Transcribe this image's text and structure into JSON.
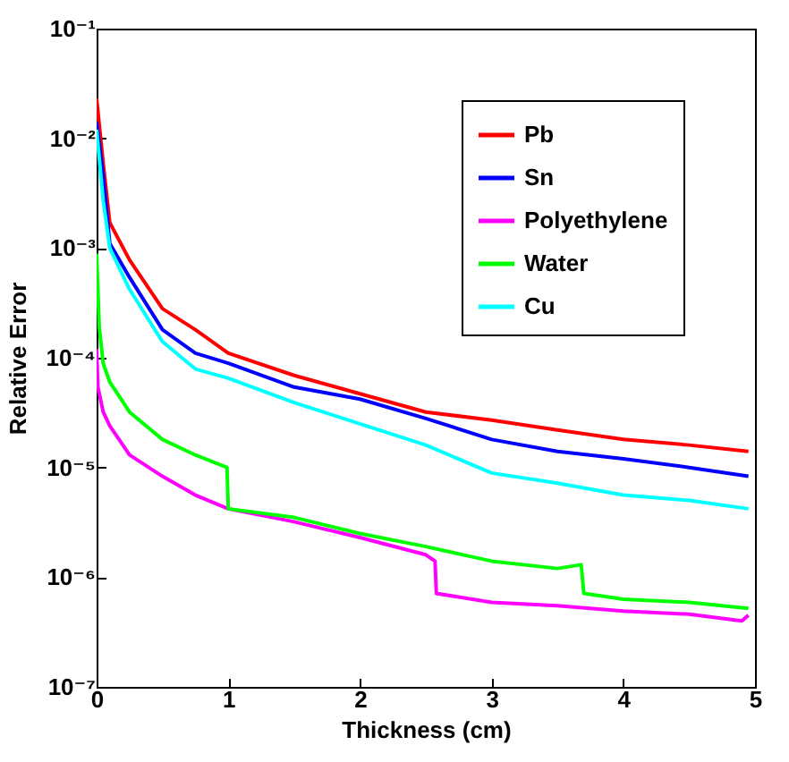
{
  "chart_data": {
    "type": "line",
    "xlabel": "Thickness (cm)",
    "ylabel": "Relative Error",
    "x": [
      0,
      0.05,
      0.1,
      0.25,
      0.5,
      0.75,
      1,
      1.5,
      2,
      2.5,
      3,
      3.5,
      4,
      4.5,
      4.95
    ],
    "series": [
      {
        "name": "Pb",
        "color": "#ff0000",
        "values": [
          0.023,
          0.0059,
          0.0017,
          0.00078,
          0.00028,
          0.00018,
          0.00011,
          6.9e-05,
          4.7e-05,
          3.2e-05,
          2.7e-05,
          2.2e-05,
          1.8e-05,
          1.6e-05,
          1.4e-05
        ]
      },
      {
        "name": "Sn",
        "color": "#0000ff",
        "values": [
          0.014,
          0.0045,
          0.0011,
          0.00054,
          0.00018,
          0.00011,
          8.9e-05,
          5.4e-05,
          4.2e-05,
          2.8e-05,
          1.8e-05,
          1.4e-05,
          1.2e-05,
          1e-05,
          8.3e-06
        ]
      },
      {
        "name": "Polyethylene",
        "color": "#ff00ff",
        "x": [
          0,
          0.01,
          0.05,
          0.1,
          0.25,
          0.5,
          0.75,
          1,
          1.5,
          2,
          2.5,
          2.57,
          2.58,
          3,
          3.5,
          4,
          4.5,
          4.9,
          4.95
        ],
        "values": [
          0.00012,
          5.4e-05,
          3.2e-05,
          2.4e-05,
          1.3e-05,
          8.3e-06,
          5.6e-06,
          4.2e-06,
          3.2e-06,
          2.3e-06,
          1.6e-06,
          1.4e-06,
          7.1e-07,
          5.9e-07,
          5.5e-07,
          4.9e-07,
          4.6e-07,
          4e-07,
          4.5e-07
        ]
      },
      {
        "name": "Water",
        "color": "#00ff00",
        "x": [
          0,
          0.02,
          0.05,
          0.1,
          0.25,
          0.5,
          0.75,
          0.99,
          1.0,
          1.5,
          2,
          2.5,
          3,
          3.5,
          3.68,
          3.7,
          4,
          4.5,
          4.95
        ],
        "values": [
          0.00089,
          0.00019,
          8.9e-05,
          6e-05,
          3.2e-05,
          1.8e-05,
          1.3e-05,
          1e-05,
          4.2e-06,
          3.5e-06,
          2.5e-06,
          1.9e-06,
          1.4e-06,
          1.2e-06,
          1.3e-06,
          7.1e-07,
          6.3e-07,
          5.9e-07,
          5.2e-07
        ]
      },
      {
        "name": "Cu",
        "color": "#00ffff",
        "values": [
          0.012,
          0.0027,
          0.001,
          0.00042,
          0.00014,
          7.9e-05,
          6.5e-05,
          3.9e-05,
          2.5e-05,
          1.6e-05,
          8.9e-06,
          7.2e-06,
          5.6e-06,
          5e-06,
          4.2e-06
        ]
      }
    ],
    "xlim": [
      0,
      5
    ],
    "xticks": [
      0,
      1,
      2,
      3,
      4,
      5
    ],
    "ylim": [
      1e-07,
      0.1
    ],
    "yticks": [
      {
        "value": 1e-07,
        "label": "10⁻⁷"
      },
      {
        "value": 1e-06,
        "label": "10⁻⁶"
      },
      {
        "value": 1e-05,
        "label": "10⁻⁵"
      },
      {
        "value": 0.0001,
        "label": "10⁻⁴"
      },
      {
        "value": 0.001,
        "label": "10⁻³"
      },
      {
        "value": 0.01,
        "label": "10⁻²"
      },
      {
        "value": 0.1,
        "label": "10⁻¹"
      }
    ],
    "log": "y",
    "legend": "top right",
    "line_style": "solid",
    "marker": "none",
    "grid": false
  }
}
